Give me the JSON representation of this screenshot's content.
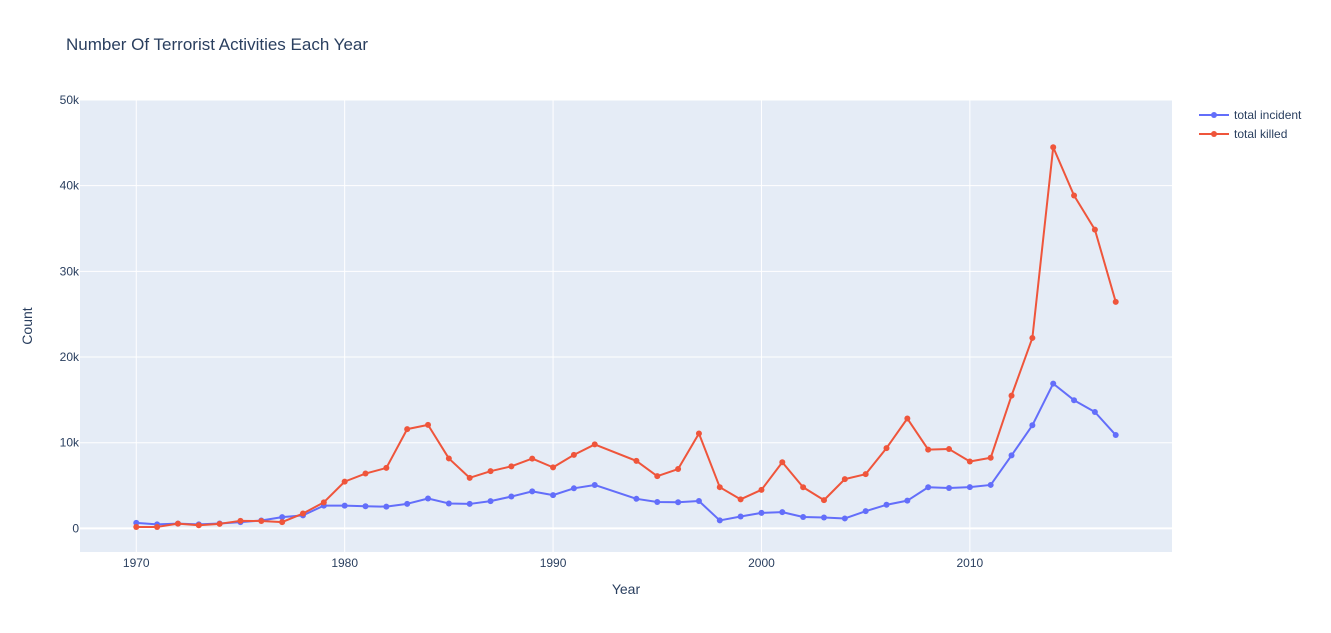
{
  "chart_data": {
    "type": "line",
    "title": "Number Of Terrorist Activities Each Year",
    "xlabel": "Year",
    "ylabel": "Count",
    "xlim": [
      1967.3,
      2019.7
    ],
    "ylim": [
      -2750,
      50000
    ],
    "x_ticks": [
      1970,
      1980,
      1990,
      2000,
      2010
    ],
    "y_ticks": [
      0,
      10000,
      20000,
      30000,
      40000,
      50000
    ],
    "y_tick_labels": [
      "0",
      "10k",
      "20k",
      "30k",
      "40k",
      "50k"
    ],
    "grid": true,
    "legend_position": "top-right",
    "x": [
      1970,
      1971,
      1972,
      1973,
      1974,
      1975,
      1976,
      1977,
      1978,
      1979,
      1980,
      1981,
      1982,
      1983,
      1984,
      1985,
      1986,
      1987,
      1988,
      1989,
      1990,
      1991,
      1992,
      1994,
      1995,
      1996,
      1997,
      1998,
      1999,
      2000,
      2001,
      2002,
      2003,
      2004,
      2005,
      2006,
      2007,
      2008,
      2009,
      2010,
      2011,
      2012,
      2013,
      2014,
      2015,
      2016,
      2017
    ],
    "series": [
      {
        "name": "total incident",
        "color": "#636efa",
        "values": [
          651,
          471,
          568,
          473,
          581,
          740,
          923,
          1319,
          1526,
          2662,
          2662,
          2586,
          2544,
          2870,
          3495,
          2915,
          2860,
          3183,
          3721,
          4324,
          3887,
          4683,
          5071,
          3458,
          3081,
          3058,
          3197,
          934,
          1395,
          1814,
          1906,
          1333,
          1278,
          1166,
          2017,
          2758,
          3242,
          4805,
          4721,
          4826,
          5076,
          8522,
          12036,
          16903,
          14965,
          13587,
          10900
        ]
      },
      {
        "name": "total killed",
        "color": "#ef553b",
        "values": [
          174,
          173,
          566,
          370,
          539,
          889,
          868,
          739,
          1740,
          3047,
          5464,
          6406,
          7061,
          11593,
          12084,
          8169,
          5905,
          6682,
          7245,
          8152,
          7125,
          8582,
          9804,
          7880,
          6101,
          6931,
          11081,
          4814,
          3396,
          4505,
          7728,
          4807,
          3306,
          5754,
          6332,
          9374,
          12829,
          9204,
          9263,
          7810,
          8246,
          15497,
          22231,
          44490,
          38853,
          34871,
          26445
        ]
      }
    ]
  }
}
